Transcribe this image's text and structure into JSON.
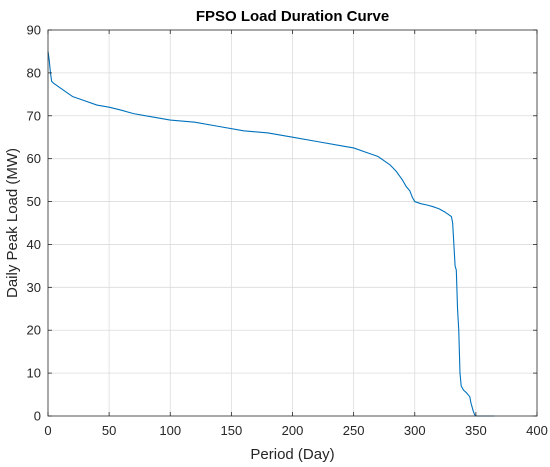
{
  "chart_data": {
    "type": "line",
    "title": "FPSO Load Duration Curve",
    "xlabel": "Period (Day)",
    "ylabel": "Daily Peak Load (MW)",
    "xlim": [
      0,
      400
    ],
    "ylim": [
      0,
      90
    ],
    "xticks": [
      0,
      50,
      100,
      150,
      200,
      250,
      300,
      350,
      400
    ],
    "yticks": [
      0,
      10,
      20,
      30,
      40,
      50,
      60,
      70,
      80,
      90
    ],
    "grid": true,
    "series": [
      {
        "color": "#0072BD",
        "x": [
          0,
          1,
          2,
          3,
          5,
          10,
          20,
          30,
          40,
          50,
          60,
          70,
          80,
          100,
          120,
          140,
          160,
          180,
          200,
          220,
          240,
          250,
          260,
          270,
          275,
          280,
          285,
          290,
          293,
          296,
          298,
          300,
          305,
          310,
          315,
          320,
          325,
          330,
          331,
          332,
          333,
          334,
          335,
          336,
          337,
          338,
          339,
          340,
          342,
          345,
          346,
          347,
          348,
          349,
          350,
          360,
          365
        ],
        "y": [
          85,
          83,
          80,
          78,
          77.5,
          76.5,
          74.5,
          73.5,
          72.5,
          72,
          71.3,
          70.5,
          70,
          69,
          68.5,
          67.5,
          66.5,
          66,
          65,
          64,
          63,
          62.5,
          61.5,
          60.5,
          59.5,
          58.5,
          57,
          55,
          53.5,
          52.5,
          51,
          50,
          49.5,
          49.2,
          48.8,
          48.3,
          47.5,
          46.5,
          45,
          40,
          35,
          34,
          25,
          20,
          10,
          7,
          6.5,
          6,
          5.5,
          4.5,
          3,
          2,
          1,
          0.3,
          0,
          0,
          0
        ]
      }
    ]
  }
}
